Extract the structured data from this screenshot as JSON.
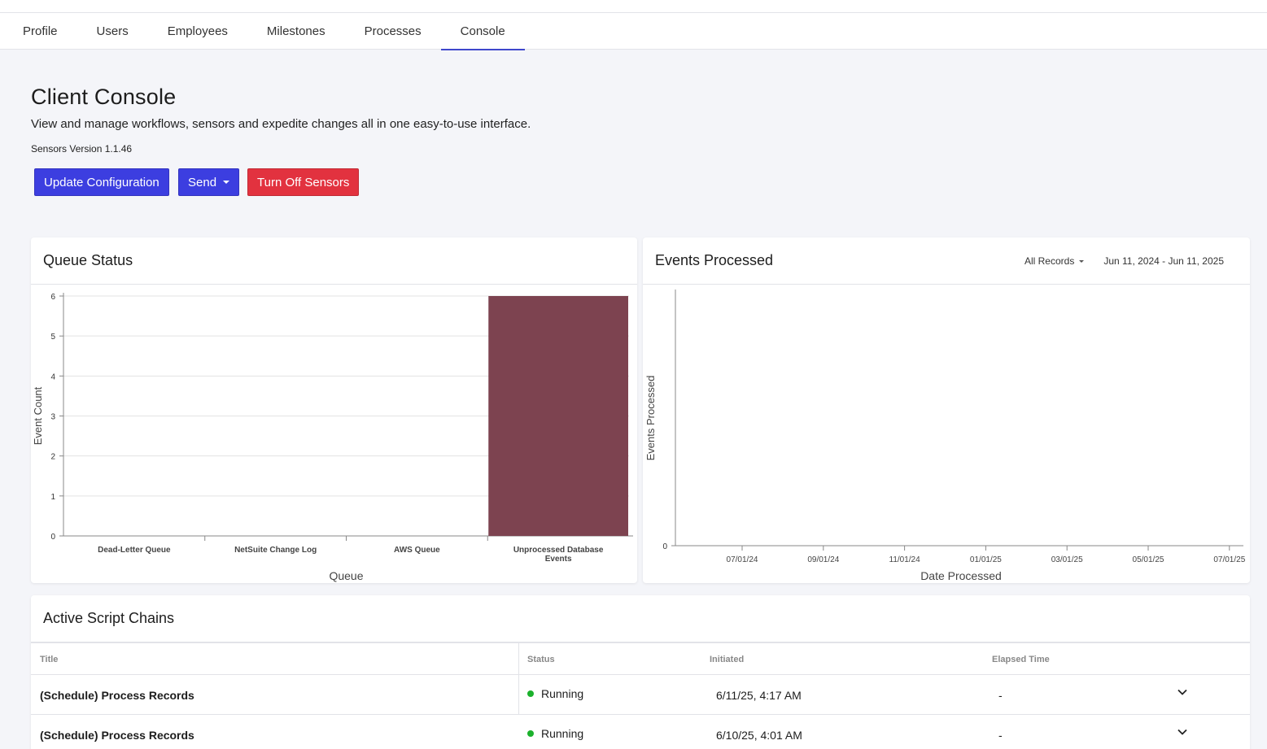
{
  "tabs": [
    {
      "label": "Profile",
      "active": false
    },
    {
      "label": "Users",
      "active": false
    },
    {
      "label": "Employees",
      "active": false
    },
    {
      "label": "Milestones",
      "active": false
    },
    {
      "label": "Processes",
      "active": false
    },
    {
      "label": "Console",
      "active": true
    }
  ],
  "header": {
    "title": "Client Console",
    "description": "View and manage workflows, sensors and expedite changes all in one easy-to-use interface.",
    "version": "Sensors Version 1.1.46"
  },
  "actions": {
    "update_label": "Update Configuration",
    "send_label": "Send",
    "turn_off_label": "Turn Off Sensors"
  },
  "colors": {
    "primary": "#3c3ee0",
    "danger": "#e2323f",
    "bar": "#7d4350",
    "running": "#1bb12c"
  },
  "queue_card": {
    "title": "Queue Status"
  },
  "events_card": {
    "title": "Events Processed",
    "filter_label": "All Records",
    "date_range": "Jun 11, 2024 - Jun 11, 2025"
  },
  "chart_data": [
    {
      "type": "bar",
      "title": "Queue Status",
      "xlabel": "Queue",
      "ylabel": "Event Count",
      "categories": [
        "Dead-Letter Queue",
        "NetSuite Change Log",
        "AWS Queue",
        "Unprocessed Database Events"
      ],
      "values": [
        0,
        0,
        0,
        6
      ],
      "ylim": [
        0,
        6
      ],
      "yticks": [
        0,
        1,
        2,
        3,
        4,
        5,
        6
      ],
      "grid": true
    },
    {
      "type": "line",
      "title": "Events Processed",
      "xlabel": "Date Processed",
      "ylabel": "Events Processed",
      "xticks": [
        "07/01/24",
        "09/01/24",
        "11/01/24",
        "01/01/25",
        "03/01/25",
        "05/01/25",
        "07/01/25"
      ],
      "yticks": [
        0
      ],
      "series": [],
      "grid": false
    }
  ],
  "script_chains": {
    "title": "Active Script Chains",
    "columns": [
      "Title",
      "Status",
      "Initiated",
      "Elapsed Time"
    ],
    "rows": [
      {
        "title": "(Schedule) Process Records",
        "status": "Running",
        "initiated": "6/11/25, 4:17 AM",
        "elapsed": "-"
      },
      {
        "title": "(Schedule) Process Records",
        "status": "Running",
        "initiated": "6/10/25, 4:01 AM",
        "elapsed": "-"
      }
    ]
  }
}
